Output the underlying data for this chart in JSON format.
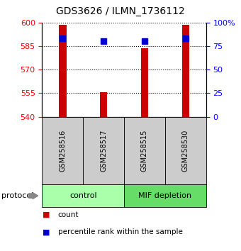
{
  "title": "GDS3626 / ILMN_1736112",
  "samples": [
    "GSM258516",
    "GSM258517",
    "GSM258515",
    "GSM258530"
  ],
  "bar_values": [
    598.5,
    555.5,
    583.5,
    598.5
  ],
  "percentile_values": [
    590.0,
    588.0,
    588.0,
    590.0
  ],
  "bar_bottom": 540,
  "ylim_left": [
    540,
    600
  ],
  "ylim_right": [
    0,
    100
  ],
  "yticks_left": [
    540,
    555,
    570,
    585,
    600
  ],
  "yticks_right": [
    0,
    25,
    50,
    75,
    100
  ],
  "ytick_labels_right": [
    "0",
    "25",
    "50",
    "75",
    "100%"
  ],
  "bar_color": "#cc0000",
  "marker_color": "#0000cc",
  "group_labels": [
    "control",
    "MIF depletion"
  ],
  "group_ranges": [
    [
      0,
      2
    ],
    [
      2,
      4
    ]
  ],
  "group_color_control": "#aaffaa",
  "group_color_mif": "#66dd66",
  "sample_box_color": "#cccccc",
  "bar_width": 0.18,
  "legend_marker_size": 6,
  "title_fontsize": 10,
  "tick_fontsize": 8,
  "sample_fontsize": 7,
  "group_fontsize": 8,
  "legend_fontsize": 7.5
}
